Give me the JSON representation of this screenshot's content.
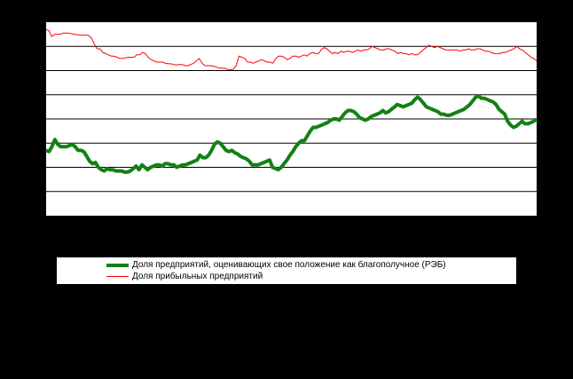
{
  "chart_data": {
    "type": "line",
    "title": "",
    "xlabel": "",
    "ylabel": "",
    "grid": true,
    "legend_position": "bottom",
    "series": [
      {
        "name": "Доля предприятий, оценивающих свое положение как благополучное (РЭБ)",
        "color": "#138013",
        "style": "thick",
        "values": [
          27.0,
          26.5,
          28.5,
          31.5,
          29.5,
          28.5,
          28.5,
          28.5,
          29,
          29.5,
          28.5,
          27,
          27,
          26.5,
          24.5,
          22.5,
          21.5,
          22,
          20,
          19,
          18.5,
          19.5,
          19,
          19,
          18.5,
          18.5,
          18.5,
          18,
          18,
          18.5,
          19.5,
          20.5,
          19,
          21,
          20,
          19,
          20,
          20.5,
          21,
          21,
          20.5,
          21.5,
          21.5,
          21,
          21,
          20,
          20.5,
          21,
          21,
          21.5,
          22,
          22.5,
          23,
          25,
          24,
          24,
          25,
          27,
          29.5,
          30.5,
          30,
          28.5,
          27,
          26.5,
          27,
          26,
          25.5,
          24.5,
          24,
          23.5,
          22.5,
          21,
          21,
          21,
          21.5,
          22,
          22.5,
          23,
          20,
          19.5,
          19,
          20,
          21.5,
          23,
          25,
          26.5,
          28.5,
          30,
          31,
          31,
          33,
          35,
          36.5,
          36.5,
          37,
          37.5,
          38,
          38.5,
          39.5,
          40,
          40,
          39.5,
          41,
          42.5,
          43.5,
          43.5,
          43,
          42,
          40.5,
          40,
          39.5,
          40,
          41,
          41.5,
          42,
          42.5,
          43.5,
          42.5,
          43,
          44,
          45,
          46,
          45.5,
          45,
          45.5,
          46,
          46.5,
          48,
          49,
          48,
          46.5,
          45,
          44.5,
          44,
          43.5,
          43,
          42,
          42,
          41.5,
          41.5,
          42,
          42.5,
          43,
          43.5,
          44,
          45,
          46,
          47.5,
          49,
          49.5,
          48.5,
          48.5,
          48,
          47.5,
          47,
          46,
          44,
          43,
          42,
          39,
          37.5,
          36.5,
          37,
          38,
          39,
          38,
          38,
          38.5,
          39,
          40
        ]
      },
      {
        "name": "Доля прибыльных предприятий",
        "color": "#ff0000",
        "style": "thin",
        "values": [
          77,
          76.5,
          74,
          75,
          75,
          75,
          75.5,
          75.5,
          75.5,
          75.2,
          75,
          74.8,
          74.8,
          74.5,
          74.8,
          74.5,
          73.5,
          71,
          69,
          69,
          67.5,
          67,
          66.5,
          66,
          66,
          65.5,
          65,
          65,
          65.3,
          65.5,
          65.5,
          65.5,
          66.5,
          66.5,
          67.5,
          67,
          65.5,
          64.5,
          64,
          63.5,
          63.5,
          63.5,
          63,
          62.8,
          62.8,
          62.5,
          62.3,
          62.5,
          62.5,
          62,
          62,
          62.5,
          63,
          64,
          65,
          63,
          62,
          62,
          62,
          61.8,
          61.5,
          61,
          61,
          61,
          60.5,
          60.3,
          60.5,
          62,
          66,
          65.5,
          65,
          63.5,
          63.5,
          63,
          63.5,
          64,
          64.5,
          64,
          63.5,
          63.5,
          63,
          65,
          66,
          66,
          65.5,
          64.5,
          65,
          66,
          66,
          65.5,
          66,
          66.5,
          66,
          67,
          67.5,
          67,
          67,
          68.5,
          69.5,
          69,
          68,
          67,
          67.5,
          67,
          68,
          67.5,
          68,
          68,
          67.5,
          68,
          68.5,
          68,
          68.5,
          68.5,
          69,
          70,
          69.5,
          69,
          68.5,
          68.5,
          69,
          69,
          68.5,
          68,
          67,
          67.5,
          67,
          67,
          66.5,
          67,
          66.5,
          66.5,
          67.5,
          68.5,
          69.5,
          70.5,
          70,
          69.5,
          70,
          69.5,
          69,
          68.5,
          68.5,
          68.5,
          68.5,
          68.5,
          68,
          68.5,
          68.5,
          69,
          68.5,
          68.5,
          69,
          69,
          68.5,
          68,
          68,
          67.5,
          67,
          67,
          67,
          67.5,
          67.5,
          68,
          68.5,
          69,
          70,
          69,
          68.5,
          67.5,
          66.5,
          65.5,
          65,
          64
        ]
      }
    ]
  },
  "legend": {
    "items": [
      {
        "label": "Доля предприятий, оценивающих свое положение как благополучное (РЭБ)"
      },
      {
        "label": "Доля прибыльных предприятий"
      }
    ]
  }
}
